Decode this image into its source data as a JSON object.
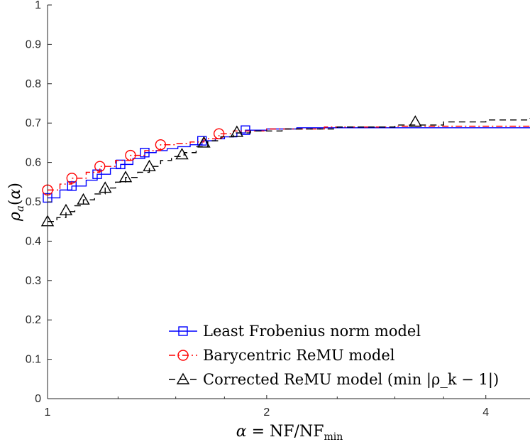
{
  "chart_data": {
    "type": "line",
    "title": "",
    "xlabel": "α = NF/NF_min",
    "ylabel": "ρ_a(α)",
    "xscale": "log2",
    "xlim": [
      1,
      4.6
    ],
    "ylim": [
      0,
      1
    ],
    "x_ticks": [
      1,
      2,
      4
    ],
    "x_tick_labels": [
      "1",
      "2",
      "4"
    ],
    "y_ticks": [
      0,
      0.1,
      0.2,
      0.3,
      0.4,
      0.5,
      0.6,
      0.7,
      0.8,
      0.9,
      1
    ],
    "y_tick_labels": [
      "0",
      "0.1",
      "0.2",
      "0.3",
      "0.4",
      "0.5",
      "0.6",
      "0.7",
      "0.8",
      "0.9",
      "1"
    ],
    "legend_position": "bottom-right",
    "series": [
      {
        "name": "Least Frobenius norm model",
        "color": "#0000ff",
        "dash": "solid",
        "marker": "square",
        "x": [
          1.0,
          1.04,
          1.08,
          1.13,
          1.17,
          1.22,
          1.26,
          1.31,
          1.36,
          1.41,
          1.46,
          1.51,
          1.57,
          1.63,
          1.7,
          1.75,
          1.82,
          1.87,
          2.0,
          2.2,
          3.0,
          4.6
        ],
        "y": [
          0.51,
          0.53,
          0.54,
          0.555,
          0.57,
          0.585,
          0.595,
          0.61,
          0.625,
          0.63,
          0.635,
          0.64,
          0.645,
          0.655,
          0.66,
          0.665,
          0.675,
          0.682,
          0.685,
          0.688,
          0.688,
          0.688
        ],
        "marker_x": [
          1.0,
          1.08,
          1.17,
          1.26,
          1.36,
          1.63,
          1.87
        ],
        "marker_y": [
          0.51,
          0.54,
          0.57,
          0.595,
          0.625,
          0.655,
          0.682
        ]
      },
      {
        "name": "Barycentric ReMU model",
        "color": "#ff0000",
        "dash": "dashdot",
        "marker": "circle",
        "x": [
          1.0,
          1.04,
          1.08,
          1.13,
          1.18,
          1.24,
          1.3,
          1.36,
          1.43,
          1.5,
          1.57,
          1.64,
          1.72,
          1.8,
          2.0,
          2.4,
          3.0,
          4.6
        ],
        "y": [
          0.53,
          0.545,
          0.56,
          0.575,
          0.59,
          0.605,
          0.618,
          0.63,
          0.645,
          0.648,
          0.652,
          0.66,
          0.673,
          0.68,
          0.685,
          0.69,
          0.692,
          0.695
        ],
        "marker_x": [
          1.0,
          1.08,
          1.18,
          1.3,
          1.43,
          1.72
        ],
        "marker_y": [
          0.53,
          0.56,
          0.59,
          0.618,
          0.645,
          0.673
        ]
      },
      {
        "name": "Corrected ReMU model (min |ρ_k − 1|)",
        "color": "#000000",
        "dash": "dashed",
        "marker": "triangle",
        "x": [
          1.0,
          1.03,
          1.06,
          1.09,
          1.12,
          1.16,
          1.2,
          1.24,
          1.28,
          1.33,
          1.38,
          1.43,
          1.48,
          1.54,
          1.6,
          1.66,
          1.73,
          1.8,
          1.9,
          2.1,
          2.5,
          3.0,
          3.5,
          4.0,
          4.6
        ],
        "y": [
          0.45,
          0.46,
          0.475,
          0.49,
          0.505,
          0.52,
          0.535,
          0.55,
          0.562,
          0.575,
          0.59,
          0.605,
          0.615,
          0.625,
          0.64,
          0.655,
          0.665,
          0.675,
          0.68,
          0.685,
          0.69,
          0.695,
          0.703,
          0.708,
          0.713
        ],
        "marker_x": [
          1.0,
          1.06,
          1.12,
          1.2,
          1.28,
          1.38,
          1.53,
          1.64,
          1.82,
          3.2
        ],
        "marker_y": [
          0.45,
          0.478,
          0.505,
          0.535,
          0.562,
          0.59,
          0.62,
          0.65,
          0.677,
          0.703
        ]
      }
    ]
  }
}
